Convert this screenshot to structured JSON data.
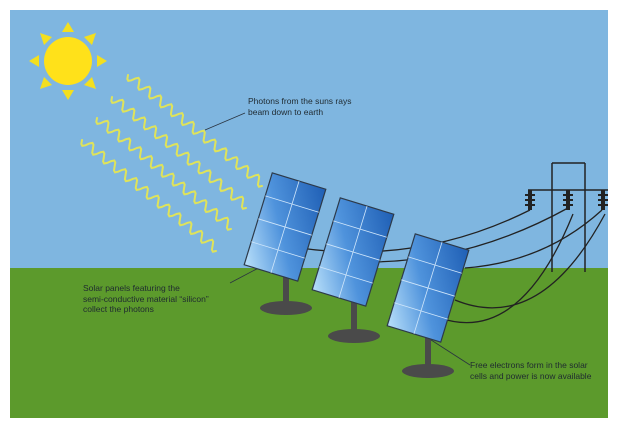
{
  "colors": {
    "sky": "#7fb6e0",
    "ground": "#5c9a2c",
    "sun": "#ffe11a",
    "sun_rays": "#f3df1f",
    "photon_waves": "#dfe35a",
    "panel_dark": "#1f5fb5",
    "panel_light": "#9ed0f5",
    "panel_frame": "#2d3a4a",
    "stand": "#4a4a4a",
    "wire": "#222222"
  },
  "labels": {
    "photons": [
      "Photons from the suns rays",
      "beam down to earth"
    ],
    "panels": [
      "Solar panels featuring the",
      "semi-conductive material “silicon”",
      "collect the photons"
    ],
    "electrons": [
      "Free electrons form in the solar",
      "cells and power is now available"
    ]
  },
  "icons": [
    "sun-icon",
    "photon-wave-icon",
    "solar-panel-icon",
    "power-pole-icon",
    "insulator-icon"
  ]
}
